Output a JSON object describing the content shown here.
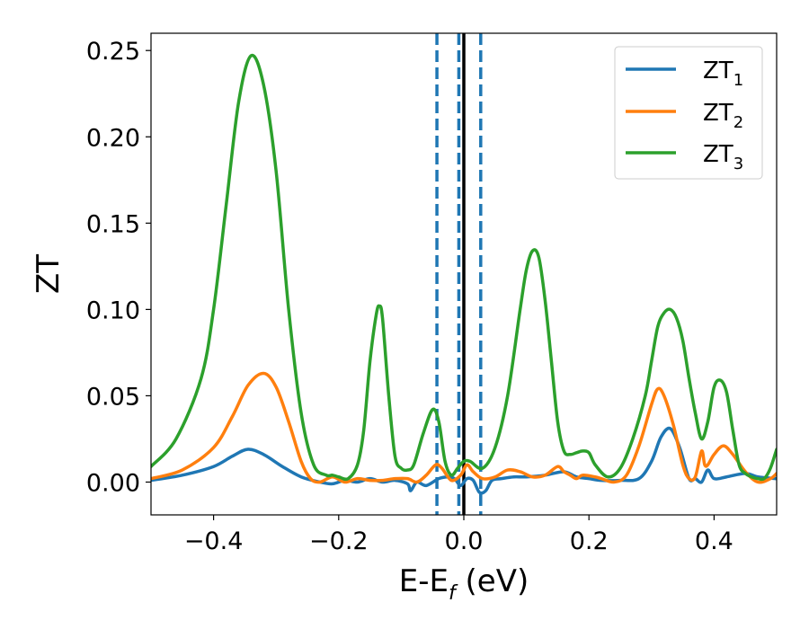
{
  "chart_data": {
    "type": "line",
    "xlabel": "E-E",
    "xlabel_subscript": "f",
    "xlabel_unit": " (eV)",
    "ylabel": "ZT",
    "xlim": [
      -0.5,
      0.5
    ],
    "ylim": [
      -0.019,
      0.26
    ],
    "xticks": [
      -0.4,
      -0.2,
      0.0,
      0.2,
      0.4
    ],
    "xtick_labels": [
      "−0.4",
      "−0.2",
      "0.0",
      "0.2",
      "0.4"
    ],
    "yticks": [
      0.0,
      0.05,
      0.1,
      0.15,
      0.2,
      0.25
    ],
    "ytick_labels": [
      "0.00",
      "0.05",
      "0.10",
      "0.15",
      "0.20",
      "0.25"
    ],
    "grid": false,
    "legend_position": "top-right",
    "vertical_lines": [
      {
        "x": 0.0,
        "style": "solid",
        "color": "#000000"
      },
      {
        "x": -0.043,
        "style": "dashed",
        "color": "#1f77b4"
      },
      {
        "x": -0.008,
        "style": "dashed",
        "color": "#1f77b4"
      },
      {
        "x": 0.027,
        "style": "dashed",
        "color": "#1f77b4"
      }
    ],
    "series": [
      {
        "name": "ZT",
        "name_subscript": "1",
        "color": "#1f77b4",
        "x": [
          -0.5,
          -0.45,
          -0.4,
          -0.37,
          -0.345,
          -0.32,
          -0.29,
          -0.26,
          -0.23,
          -0.21,
          -0.19,
          -0.17,
          -0.15,
          -0.13,
          -0.11,
          -0.09,
          -0.085,
          -0.075,
          -0.06,
          -0.04,
          -0.025,
          -0.015,
          -0.005,
          0.005,
          0.015,
          0.025,
          0.035,
          0.045,
          0.06,
          0.08,
          0.1,
          0.13,
          0.16,
          0.18,
          0.2,
          0.22,
          0.25,
          0.28,
          0.3,
          0.315,
          0.33,
          0.345,
          0.36,
          0.37,
          0.38,
          0.39,
          0.4,
          0.42,
          0.45,
          0.47,
          0.5
        ],
        "y": [
          0.001,
          0.004,
          0.009,
          0.015,
          0.019,
          0.016,
          0.009,
          0.003,
          0.0,
          -0.001,
          0.001,
          0.0,
          0.002,
          0.0,
          0.001,
          -0.001,
          -0.005,
          0.0,
          -0.002,
          0.002,
          0.003,
          0.002,
          -0.002,
          0.002,
          0.001,
          -0.006,
          -0.005,
          0.001,
          0.002,
          0.003,
          0.003,
          0.004,
          0.006,
          0.003,
          0.002,
          0.001,
          0.001,
          0.002,
          0.012,
          0.026,
          0.031,
          0.02,
          0.002,
          0.002,
          0.0,
          0.007,
          0.002,
          0.003,
          0.005,
          0.003,
          0.002
        ]
      },
      {
        "name": "ZT",
        "name_subscript": "2",
        "color": "#ff7f0e",
        "x": [
          -0.5,
          -0.45,
          -0.4,
          -0.37,
          -0.345,
          -0.32,
          -0.3,
          -0.28,
          -0.26,
          -0.245,
          -0.23,
          -0.21,
          -0.19,
          -0.17,
          -0.15,
          -0.13,
          -0.11,
          -0.09,
          -0.075,
          -0.06,
          -0.045,
          -0.035,
          -0.02,
          -0.005,
          0.005,
          0.015,
          0.03,
          0.05,
          0.07,
          0.09,
          0.11,
          0.13,
          0.15,
          0.16,
          0.17,
          0.18,
          0.19,
          0.21,
          0.22,
          0.24,
          0.26,
          0.28,
          0.3,
          0.31,
          0.32,
          0.335,
          0.35,
          0.36,
          0.37,
          0.38,
          0.385,
          0.39,
          0.4,
          0.415,
          0.43,
          0.45,
          0.47,
          0.49,
          0.5
        ],
        "y": [
          0.002,
          0.007,
          0.02,
          0.038,
          0.056,
          0.063,
          0.055,
          0.035,
          0.012,
          0.002,
          0.0,
          0.003,
          0.0,
          0.002,
          0.001,
          0.001,
          0.002,
          0.002,
          0.0,
          0.004,
          0.01,
          0.008,
          0.001,
          0.004,
          0.01,
          0.006,
          0.002,
          0.003,
          0.007,
          0.006,
          0.003,
          0.004,
          0.009,
          0.006,
          0.004,
          0.002,
          0.004,
          0.003,
          0.002,
          0.0,
          0.004,
          0.021,
          0.045,
          0.054,
          0.05,
          0.033,
          0.01,
          0.002,
          0.003,
          0.018,
          0.01,
          0.01,
          0.016,
          0.021,
          0.016,
          0.006,
          0.0,
          0.002,
          0.005
        ]
      },
      {
        "name": "ZT",
        "name_subscript": "3",
        "color": "#2ca02c",
        "x": [
          -0.5,
          -0.46,
          -0.42,
          -0.4,
          -0.38,
          -0.36,
          -0.34,
          -0.32,
          -0.3,
          -0.28,
          -0.26,
          -0.24,
          -0.22,
          -0.21,
          -0.2,
          -0.185,
          -0.17,
          -0.16,
          -0.15,
          -0.14,
          -0.135,
          -0.13,
          -0.12,
          -0.11,
          -0.1,
          -0.09,
          -0.08,
          -0.065,
          -0.05,
          -0.04,
          -0.03,
          -0.02,
          -0.01,
          0.0,
          0.01,
          0.03,
          0.05,
          0.07,
          0.09,
          0.1,
          0.11,
          0.12,
          0.13,
          0.14,
          0.15,
          0.16,
          0.17,
          0.18,
          0.19,
          0.2,
          0.21,
          0.23,
          0.25,
          0.27,
          0.29,
          0.3,
          0.31,
          0.32,
          0.33,
          0.34,
          0.35,
          0.36,
          0.37,
          0.38,
          0.39,
          0.4,
          0.41,
          0.42,
          0.43,
          0.44,
          0.45,
          0.46,
          0.47,
          0.48,
          0.49,
          0.5
        ],
        "y": [
          0.009,
          0.025,
          0.06,
          0.1,
          0.16,
          0.22,
          0.247,
          0.23,
          0.18,
          0.1,
          0.04,
          0.01,
          0.004,
          0.004,
          0.003,
          0.002,
          0.01,
          0.03,
          0.07,
          0.097,
          0.102,
          0.095,
          0.05,
          0.015,
          0.008,
          0.007,
          0.01,
          0.028,
          0.042,
          0.035,
          0.012,
          0.004,
          0.008,
          0.012,
          0.012,
          0.008,
          0.02,
          0.05,
          0.1,
          0.123,
          0.134,
          0.13,
          0.105,
          0.07,
          0.035,
          0.018,
          0.016,
          0.017,
          0.018,
          0.017,
          0.01,
          0.003,
          0.008,
          0.025,
          0.05,
          0.07,
          0.09,
          0.098,
          0.1,
          0.095,
          0.082,
          0.06,
          0.04,
          0.025,
          0.035,
          0.055,
          0.059,
          0.052,
          0.03,
          0.01,
          0.005,
          0.003,
          0.002,
          0.002,
          0.008,
          0.019
        ]
      }
    ]
  }
}
